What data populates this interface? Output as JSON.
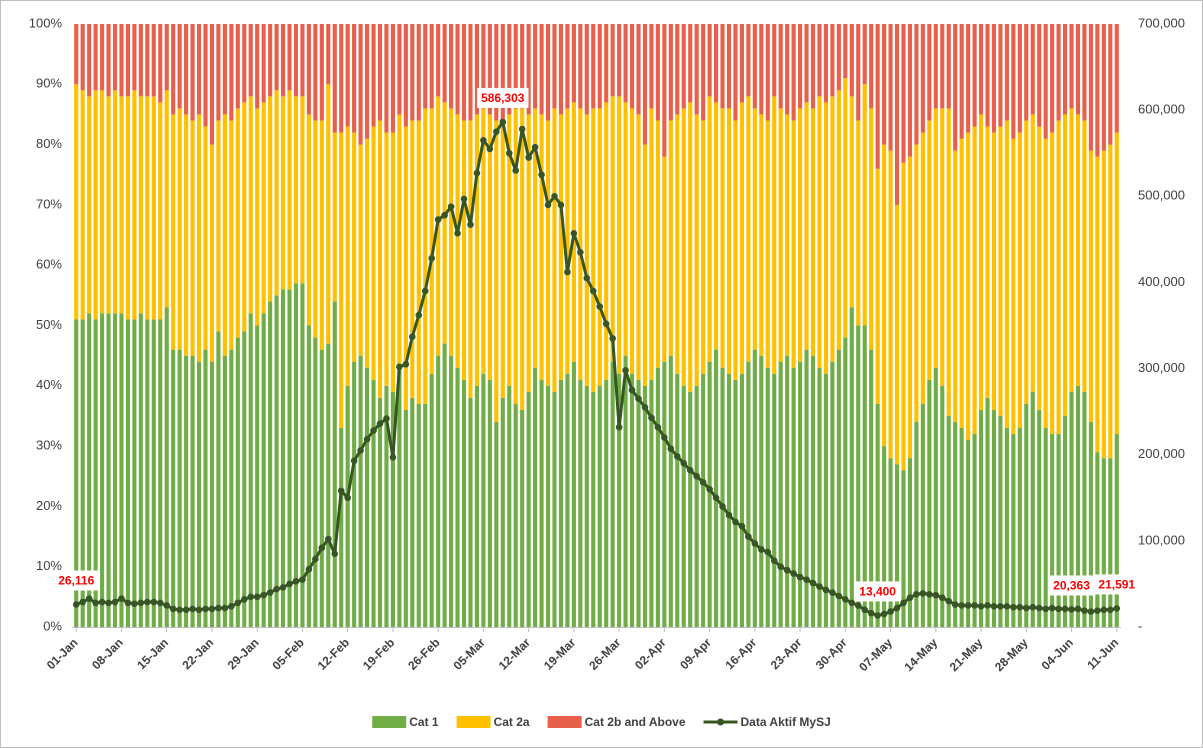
{
  "chart_data": {
    "type": "bar",
    "stacked": true,
    "grid": false,
    "legend": "bottom",
    "categories": [
      "01-Jan",
      null,
      null,
      null,
      null,
      null,
      null,
      "08-Jan",
      null,
      null,
      null,
      null,
      null,
      null,
      "15-Jan",
      null,
      null,
      null,
      null,
      null,
      null,
      "22-Jan",
      null,
      null,
      null,
      null,
      null,
      null,
      "29-Jan",
      null,
      null,
      null,
      null,
      null,
      null,
      "05-Feb",
      null,
      null,
      null,
      null,
      null,
      null,
      "12-Feb",
      null,
      null,
      null,
      null,
      null,
      null,
      "19-Feb",
      null,
      null,
      null,
      null,
      null,
      null,
      "26-Feb",
      null,
      null,
      null,
      null,
      null,
      null,
      "05-Mar",
      null,
      null,
      null,
      null,
      null,
      null,
      "12-Mar",
      null,
      null,
      null,
      null,
      null,
      null,
      "19-Mar",
      null,
      null,
      null,
      null,
      null,
      null,
      "26-Mar",
      null,
      null,
      null,
      null,
      null,
      null,
      "02-Apr",
      null,
      null,
      null,
      null,
      null,
      null,
      "09-Apr",
      null,
      null,
      null,
      null,
      null,
      null,
      "16-Apr",
      null,
      null,
      null,
      null,
      null,
      null,
      "23-Apr",
      null,
      null,
      null,
      null,
      null,
      null,
      "30-Apr",
      null,
      null,
      null,
      null,
      null,
      null,
      "07-May",
      null,
      null,
      null,
      null,
      null,
      null,
      "14-May",
      null,
      null,
      null,
      null,
      null,
      null,
      "21-May",
      null,
      null,
      null,
      null,
      null,
      null,
      "28-May",
      null,
      null,
      null,
      null,
      null,
      null,
      "04-Jun",
      null,
      null,
      null,
      null,
      null,
      null,
      "11-Jun"
    ],
    "ylim": [
      0,
      100
    ],
    "yticks": [
      {
        "value": 0,
        "label": "0%"
      },
      {
        "value": 10,
        "label": "10%"
      },
      {
        "value": 20,
        "label": "20%"
      },
      {
        "value": 30,
        "label": "30%"
      },
      {
        "value": 40,
        "label": "40%"
      },
      {
        "value": 50,
        "label": "50%"
      },
      {
        "value": 60,
        "label": "60%"
      },
      {
        "value": 70,
        "label": "70%"
      },
      {
        "value": 80,
        "label": "80%"
      },
      {
        "value": 90,
        "label": "90%"
      },
      {
        "value": 100,
        "label": "100%"
      }
    ],
    "y2lim": [
      0,
      700000
    ],
    "y2ticks": [
      {
        "value": 0,
        "label": "-"
      },
      {
        "value": 100000,
        "label": "100,000"
      },
      {
        "value": 200000,
        "label": "200,000"
      },
      {
        "value": 300000,
        "label": "300,000"
      },
      {
        "value": 400000,
        "label": "400,000"
      },
      {
        "value": 500000,
        "label": "500,000"
      },
      {
        "value": 600000,
        "label": "600,000"
      },
      {
        "value": 700000,
        "label": "700,000"
      }
    ],
    "series": [
      {
        "name": "Cat 1",
        "color": "#70ad47",
        "values": [
          51,
          51,
          52,
          51,
          52,
          52,
          52,
          52,
          51,
          51,
          52,
          51,
          51,
          51,
          53,
          46,
          46,
          45,
          45,
          44,
          46,
          44,
          49,
          45,
          46,
          48,
          49,
          52,
          50,
          52,
          54,
          55,
          56,
          56,
          57,
          57,
          50,
          48,
          46,
          47,
          54,
          33,
          40,
          44,
          45,
          43,
          41,
          38,
          40,
          39,
          43,
          36,
          38,
          37,
          37,
          42,
          45,
          47,
          45,
          43,
          41,
          38,
          40,
          42,
          41,
          34,
          38,
          40,
          37,
          36,
          39,
          43,
          41,
          40,
          39,
          41,
          42,
          44,
          41,
          40,
          39,
          40,
          41,
          44,
          42,
          45,
          42,
          41,
          40,
          41,
          43,
          44,
          45,
          42,
          40,
          39,
          40,
          42,
          44,
          46,
          43,
          42,
          41,
          42,
          44,
          46,
          45,
          43,
          42,
          44,
          45,
          43,
          44,
          46,
          45,
          43,
          42,
          44,
          46,
          48,
          53,
          50,
          50,
          46,
          37,
          30,
          28,
          27,
          26,
          28,
          34,
          37,
          41,
          43,
          40,
          35,
          34,
          33,
          31,
          32,
          36,
          38,
          36,
          35,
          33,
          32,
          33,
          37,
          39,
          36,
          33,
          32,
          32,
          35,
          39,
          40,
          39,
          34,
          29,
          28,
          28,
          32
        ]
      },
      {
        "name": "Cat 2a",
        "color": "#ffc000",
        "values": [
          39,
          38,
          36,
          38,
          37,
          36,
          37,
          36,
          37,
          38,
          36,
          37,
          37,
          36,
          36,
          39,
          40,
          40,
          39,
          41,
          37,
          36,
          35,
          40,
          38,
          38,
          38,
          36,
          36,
          35,
          34,
          34,
          32,
          33,
          31,
          31,
          35,
          36,
          38,
          43,
          28,
          49,
          43,
          38,
          35,
          38,
          42,
          46,
          42,
          43,
          42,
          47,
          46,
          47,
          49,
          44,
          43,
          40,
          41,
          42,
          43,
          46,
          45,
          44,
          44,
          50,
          46,
          45,
          49,
          50,
          46,
          43,
          44,
          44,
          47,
          44,
          44,
          43,
          45,
          45,
          47,
          46,
          46,
          44,
          46,
          42,
          44,
          44,
          40,
          45,
          41,
          34,
          39,
          43,
          46,
          48,
          45,
          42,
          44,
          41,
          43,
          44,
          43,
          45,
          44,
          40,
          40,
          41,
          46,
          42,
          40,
          41,
          42,
          41,
          41,
          45,
          45,
          44,
          43,
          43,
          35,
          34,
          40,
          40,
          39,
          50,
          51,
          43,
          51,
          50,
          46,
          45,
          43,
          43,
          46,
          51,
          45,
          48,
          51,
          51,
          49,
          45,
          46,
          48,
          51,
          49,
          49,
          47,
          46,
          47,
          48,
          50,
          52,
          50,
          47,
          45,
          45,
          45,
          49,
          51,
          52,
          50
        ]
      },
      {
        "name": "Cat 2b and Above",
        "color": "#e8604c",
        "values": [
          10,
          11,
          12,
          11,
          11,
          12,
          11,
          12,
          12,
          11,
          12,
          12,
          12,
          13,
          11,
          15,
          14,
          15,
          16,
          15,
          17,
          20,
          16,
          15,
          16,
          14,
          13,
          12,
          14,
          13,
          12,
          11,
          12,
          11,
          12,
          12,
          15,
          16,
          16,
          10,
          18,
          18,
          17,
          18,
          20,
          19,
          17,
          16,
          18,
          18,
          15,
          17,
          16,
          16,
          14,
          14,
          12,
          13,
          14,
          15,
          16,
          16,
          15,
          14,
          15,
          16,
          16,
          15,
          14,
          14,
          15,
          14,
          15,
          16,
          14,
          15,
          14,
          13,
          14,
          15,
          14,
          14,
          13,
          12,
          12,
          13,
          14,
          15,
          20,
          14,
          16,
          22,
          16,
          15,
          14,
          13,
          15,
          16,
          12,
          13,
          14,
          14,
          16,
          13,
          12,
          14,
          15,
          16,
          12,
          14,
          15,
          16,
          14,
          13,
          14,
          12,
          13,
          12,
          11,
          9,
          12,
          16,
          10,
          14,
          24,
          20,
          21,
          30,
          23,
          22,
          20,
          18,
          16,
          14,
          14,
          14,
          21,
          19,
          18,
          17,
          15,
          17,
          18,
          17,
          16,
          19,
          18,
          16,
          15,
          17,
          19,
          18,
          16,
          15,
          14,
          15,
          16,
          21,
          22,
          21,
          20,
          18
        ]
      },
      {
        "name": "Data Aktif MySJ",
        "type": "line",
        "axis": "y2",
        "color": "#375623",
        "values": [
          26116,
          29000,
          33000,
          28000,
          29000,
          28000,
          29000,
          33000,
          28000,
          27000,
          28000,
          29000,
          29000,
          28000,
          25000,
          21000,
          20000,
          20000,
          21000,
          20000,
          21000,
          21000,
          22000,
          22000,
          24000,
          28000,
          32000,
          35000,
          35000,
          37000,
          40000,
          44000,
          46000,
          50000,
          53000,
          55000,
          67000,
          79000,
          92000,
          102000,
          85000,
          158000,
          150000,
          193000,
          205000,
          218000,
          228000,
          236000,
          242000,
          197000,
          302000,
          305000,
          337000,
          362000,
          390000,
          428000,
          473000,
          478000,
          488000,
          457000,
          497000,
          467000,
          527000,
          565000,
          555000,
          575000,
          586303,
          550000,
          530000,
          578000,
          545000,
          557000,
          525000,
          490000,
          500000,
          490000,
          412000,
          457000,
          435000,
          405000,
          390000,
          372000,
          352000,
          335000,
          232000,
          298000,
          275000,
          265000,
          255000,
          243000,
          232000,
          220000,
          207000,
          198000,
          190000,
          182000,
          175000,
          168000,
          160000,
          150000,
          140000,
          130000,
          122000,
          117000,
          105000,
          97000,
          90000,
          87000,
          77000,
          70000,
          66000,
          62000,
          58000,
          55000,
          51000,
          47000,
          43000,
          40000,
          36000,
          32000,
          28000,
          25000,
          20000,
          16000,
          13400,
          15000,
          18000,
          22000,
          28000,
          34000,
          38000,
          39000,
          38000,
          37000,
          34000,
          30000,
          26000,
          25000,
          25000,
          25000,
          24000,
          25000,
          24000,
          24000,
          24000,
          23000,
          23000,
          22000,
          23000,
          22000,
          21000,
          22000,
          21000,
          21000,
          20363,
          21000,
          19000,
          18000,
          19000,
          20000,
          20000,
          21591
        ],
        "value_labels": [
          "26,116",
          null,
          null,
          null,
          null,
          null,
          null,
          null,
          null,
          null,
          null,
          null,
          null,
          null,
          null,
          null,
          null,
          null,
          null,
          null,
          null,
          null,
          null,
          null,
          null,
          null,
          null,
          null,
          null,
          null,
          null,
          null,
          null,
          null,
          null,
          null,
          null,
          null,
          null,
          null,
          null,
          null,
          null,
          null,
          null,
          null,
          null,
          null,
          null,
          null,
          null,
          null,
          null,
          null,
          null,
          null,
          null,
          null,
          null,
          null,
          null,
          null,
          null,
          null,
          null,
          null,
          "586,303",
          null,
          null,
          null,
          null,
          null,
          null,
          null,
          null,
          null,
          null,
          null,
          null,
          null,
          null,
          null,
          null,
          null,
          null,
          null,
          null,
          null,
          null,
          null,
          null,
          null,
          null,
          null,
          null,
          null,
          null,
          null,
          null,
          null,
          null,
          null,
          null,
          null,
          null,
          null,
          null,
          null,
          null,
          null,
          null,
          null,
          null,
          null,
          null,
          null,
          null,
          null,
          null,
          null,
          null,
          null,
          null,
          null,
          "13,400",
          null,
          null,
          null,
          null,
          null,
          null,
          null,
          null,
          null,
          null,
          null,
          null,
          null,
          null,
          null,
          null,
          null,
          null,
          null,
          null,
          null,
          null,
          null,
          null,
          null,
          null,
          null,
          null,
          null,
          "20,363",
          null,
          null,
          null,
          null,
          null,
          null,
          "21,591"
        ]
      }
    ]
  }
}
